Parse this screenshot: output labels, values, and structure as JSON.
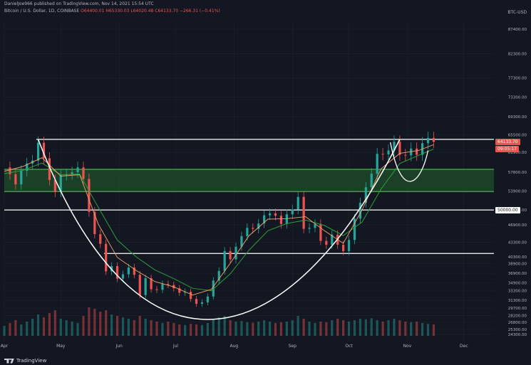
{
  "header": {
    "publish_line": "DanielJoe966 published on TradingView.com, Nov 14, 2021 15:54 UTC",
    "symbol": "Bitcoin / U.S. Dollar, 1D, COINBASE",
    "ohlc": "O64400.01 H65330.03 L64020.48 C64133.70 −266.31 (−0.41%)",
    "currency": "BTC-USD"
  },
  "footer": {
    "logo_text": "TradingView"
  },
  "price_tags": [
    {
      "text": "64133.70",
      "value": 64133.7,
      "bg": "#ef5350",
      "fg": "#ffffff"
    },
    {
      "text": "09:05:17",
      "value": 62700,
      "bg": "#ef5350",
      "fg": "#ffffff"
    },
    {
      "text": "50000.00",
      "value": 50000,
      "bg": "#ffffff",
      "fg": "#131722"
    }
  ],
  "colors": {
    "background": "#131722",
    "grid": "#1e222d",
    "up": "#26a69a",
    "down": "#ef5350",
    "ema_fast": "#f0a46a",
    "ema_slow": "#2e9e3a",
    "zone_fill": "#1f4f2a",
    "zone_border": "#4caf50",
    "curve": "#ffffff"
  },
  "chart_data": {
    "type": "candlestick",
    "title": "Bitcoin / U.S. Dollar, 1D, COINBASE",
    "ylim": [
      22800,
      89000
    ],
    "x_ticks": [
      "Apr",
      "May",
      "Jun",
      "Jul",
      "Aug",
      "Sep",
      "Oct",
      "Nov",
      "Dec"
    ],
    "x_tick_days": [
      0,
      30,
      61,
      91,
      122,
      153,
      183,
      214,
      244
    ],
    "y_ticks": [
      87400.0,
      82300.0,
      77300.0,
      73300.0,
      69300.0,
      65500.0,
      61900.0,
      57800.0,
      53900.0,
      50000.0,
      46900.0,
      43300.0,
      40300.0,
      38900.0,
      36900.0,
      34900.0,
      33300.0,
      31300.0,
      29700.0,
      28200.0,
      26800.0,
      25300.0,
      24300.0
    ],
    "key_levels": [
      {
        "name": "resistance",
        "value": 64600
      },
      {
        "name": "zone_top",
        "value": 58400
      },
      {
        "name": "zone_bottom",
        "value": 53800
      },
      {
        "name": "level_50000",
        "value": 50000
      },
      {
        "name": "neckline",
        "value": 41000
      }
    ],
    "closes": [
      [
        0,
        58800
      ],
      [
        3,
        57400
      ],
      [
        6,
        55300
      ],
      [
        9,
        58100
      ],
      [
        12,
        59600
      ],
      [
        15,
        60200
      ],
      [
        18,
        63900
      ],
      [
        21,
        60700
      ],
      [
        24,
        56200
      ],
      [
        27,
        53700
      ],
      [
        30,
        57200
      ],
      [
        33,
        57400
      ],
      [
        36,
        57800
      ],
      [
        39,
        58800
      ],
      [
        42,
        56400
      ],
      [
        45,
        49600
      ],
      [
        48,
        45000
      ],
      [
        51,
        43000
      ],
      [
        54,
        37300
      ],
      [
        57,
        38400
      ],
      [
        60,
        35800
      ],
      [
        63,
        36700
      ],
      [
        66,
        38100
      ],
      [
        69,
        36600
      ],
      [
        72,
        32400
      ],
      [
        75,
        35900
      ],
      [
        78,
        33600
      ],
      [
        81,
        33500
      ],
      [
        84,
        34700
      ],
      [
        87,
        34500
      ],
      [
        90,
        33800
      ],
      [
        93,
        32900
      ],
      [
        96,
        33100
      ],
      [
        99,
        31600
      ],
      [
        102,
        30600
      ],
      [
        105,
        30900
      ],
      [
        108,
        32100
      ],
      [
        111,
        35400
      ],
      [
        114,
        37400
      ],
      [
        117,
        41500
      ],
      [
        120,
        39800
      ],
      [
        123,
        42400
      ],
      [
        126,
        44600
      ],
      [
        129,
        46300
      ],
      [
        132,
        46100
      ],
      [
        135,
        47200
      ],
      [
        138,
        48900
      ],
      [
        141,
        49300
      ],
      [
        144,
        48800
      ],
      [
        147,
        47100
      ],
      [
        150,
        49100
      ],
      [
        153,
        50100
      ],
      [
        156,
        52700
      ],
      [
        159,
        46100
      ],
      [
        162,
        46300
      ],
      [
        165,
        47100
      ],
      [
        168,
        43600
      ],
      [
        171,
        42800
      ],
      [
        174,
        44900
      ],
      [
        177,
        42800
      ],
      [
        180,
        41500
      ],
      [
        183,
        43800
      ],
      [
        186,
        48200
      ],
      [
        189,
        51500
      ],
      [
        192,
        54700
      ],
      [
        195,
        57500
      ],
      [
        198,
        61600
      ],
      [
        201,
        61500
      ],
      [
        204,
        62300
      ],
      [
        207,
        64100
      ],
      [
        210,
        61400
      ],
      [
        213,
        61300
      ],
      [
        216,
        62700
      ],
      [
        219,
        61400
      ],
      [
        222,
        63800
      ],
      [
        225,
        64900
      ],
      [
        228,
        64100
      ]
    ],
    "ema_fast": [
      [
        0,
        58000
      ],
      [
        10,
        59000
      ],
      [
        20,
        60800
      ],
      [
        30,
        57000
      ],
      [
        40,
        57300
      ],
      [
        50,
        47000
      ],
      [
        60,
        40200
      ],
      [
        70,
        37500
      ],
      [
        80,
        35200
      ],
      [
        90,
        34100
      ],
      [
        100,
        32400
      ],
      [
        110,
        33600
      ],
      [
        120,
        39000
      ],
      [
        130,
        44700
      ],
      [
        140,
        48100
      ],
      [
        150,
        48200
      ],
      [
        160,
        48600
      ],
      [
        170,
        45700
      ],
      [
        180,
        43100
      ],
      [
        190,
        50000
      ],
      [
        200,
        58500
      ],
      [
        210,
        61700
      ],
      [
        220,
        62300
      ],
      [
        228,
        63500
      ]
    ],
    "ema_slow": [
      [
        0,
        57500
      ],
      [
        10,
        58200
      ],
      [
        20,
        59700
      ],
      [
        30,
        57300
      ],
      [
        40,
        57400
      ],
      [
        50,
        50500
      ],
      [
        60,
        43800
      ],
      [
        70,
        40300
      ],
      [
        80,
        37600
      ],
      [
        90,
        35800
      ],
      [
        100,
        33800
      ],
      [
        110,
        33300
      ],
      [
        120,
        36800
      ],
      [
        130,
        41700
      ],
      [
        140,
        45700
      ],
      [
        150,
        47200
      ],
      [
        160,
        47900
      ],
      [
        170,
        46800
      ],
      [
        180,
        44700
      ],
      [
        190,
        47500
      ],
      [
        200,
        54300
      ],
      [
        210,
        59600
      ],
      [
        220,
        61300
      ],
      [
        228,
        62600
      ]
    ],
    "volumes": [
      0.35,
      0.45,
      0.55,
      0.4,
      0.5,
      0.6,
      0.75,
      0.65,
      0.8,
      0.9,
      0.6,
      0.55,
      0.5,
      0.45,
      0.7,
      1.0,
      0.95,
      0.85,
      0.9,
      0.75,
      0.7,
      0.65,
      0.6,
      0.55,
      0.7,
      0.6,
      0.55,
      0.5,
      0.45,
      0.5,
      0.45,
      0.4,
      0.38,
      0.42,
      0.4,
      0.38,
      0.45,
      0.6,
      0.65,
      0.7,
      0.55,
      0.5,
      0.52,
      0.48,
      0.46,
      0.5,
      0.55,
      0.5,
      0.45,
      0.48,
      0.5,
      0.55,
      0.7,
      0.6,
      0.5,
      0.45,
      0.5,
      0.48,
      0.55,
      0.6,
      0.55,
      0.5,
      0.55,
      0.6,
      0.58,
      0.62,
      0.55,
      0.5,
      0.55,
      0.6,
      0.55,
      0.5,
      0.48,
      0.5,
      0.45,
      0.42,
      0.4
    ]
  }
}
